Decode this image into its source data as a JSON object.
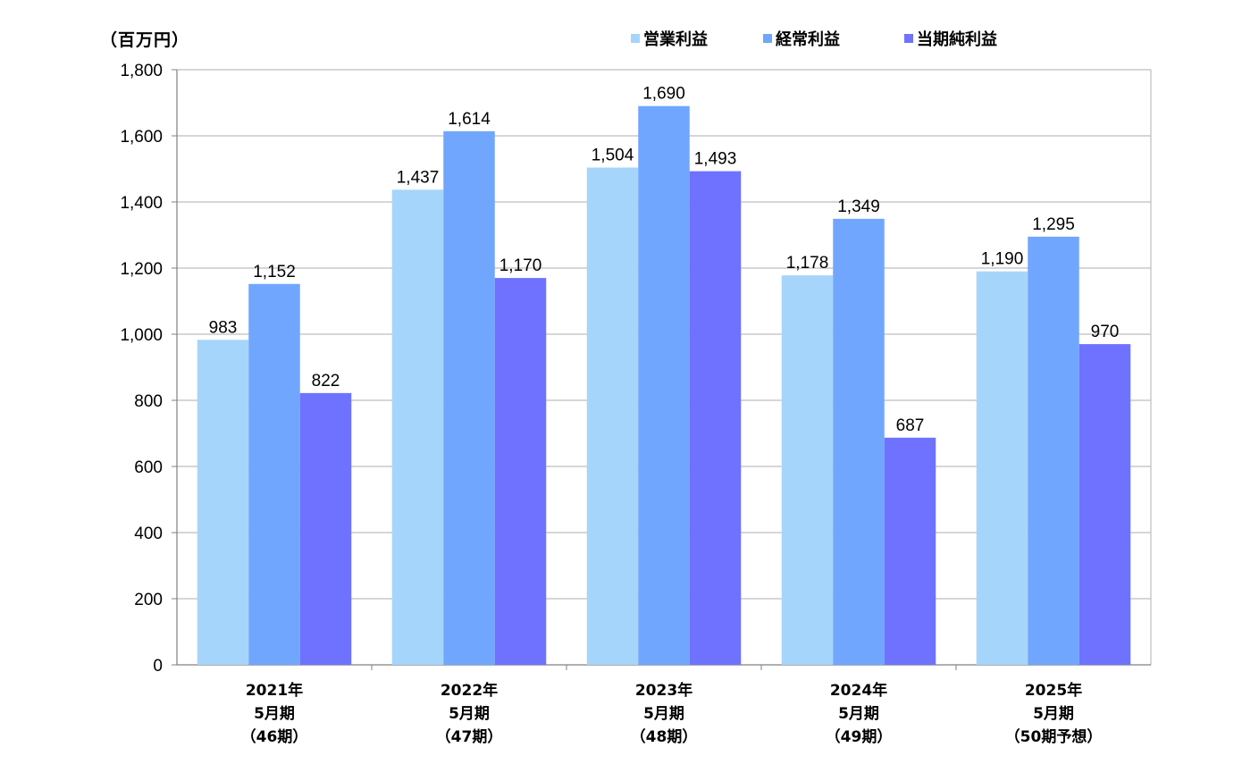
{
  "unit_label": "（百万円）",
  "colors": {
    "series": [
      "#a6d5fb",
      "#71a6fe",
      "#6e72fe"
    ],
    "grid": "#bdbdbd",
    "axis": "#808080"
  },
  "chart_data": {
    "type": "bar",
    "title": "",
    "ylabel": "（百万円）",
    "xlabel": "",
    "ylim": [
      0,
      1800
    ],
    "yticks": [
      0,
      200,
      400,
      600,
      800,
      1000,
      1200,
      1400,
      1600,
      1800
    ],
    "ytick_labels": [
      "0",
      "200",
      "400",
      "600",
      "800",
      "1,000",
      "1,200",
      "1,400",
      "1,600",
      "1,800"
    ],
    "grid": true,
    "legend_position": "top",
    "categories": [
      [
        "2021年",
        "5月期",
        "（46期）"
      ],
      [
        "2022年",
        "5月期",
        "（47期）"
      ],
      [
        "2023年",
        "5月期",
        "（48期）"
      ],
      [
        "2024年",
        "5月期",
        "（49期）"
      ],
      [
        "2025年",
        "5月期",
        "（50期予想）"
      ]
    ],
    "series": [
      {
        "name": "営業利益",
        "values": [
          983,
          1437,
          1504,
          1178,
          1190
        ],
        "labels": [
          "983",
          "1,437",
          "1,504",
          "1,178",
          "1,190"
        ]
      },
      {
        "name": "経常利益",
        "values": [
          1152,
          1614,
          1690,
          1349,
          1295
        ],
        "labels": [
          "1,152",
          "1,614",
          "1,690",
          "1,349",
          "1,295"
        ]
      },
      {
        "name": "当期純利益",
        "values": [
          822,
          1170,
          1493,
          687,
          970
        ],
        "labels": [
          "822",
          "1,170",
          "1,493",
          "687",
          "970"
        ]
      }
    ]
  }
}
